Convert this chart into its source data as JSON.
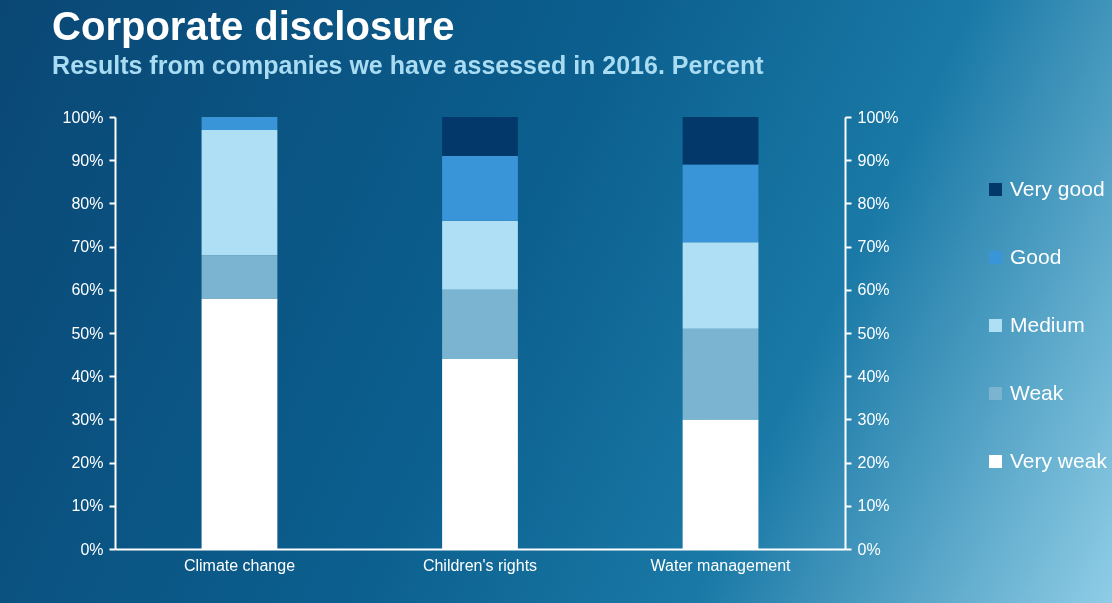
{
  "chart_data": {
    "type": "bar",
    "title": "Corporate disclosure",
    "subtitle": "Results from companies we have assessed in 2016. Percent",
    "categories": [
      "Climate change",
      "Children's rights",
      "Water management"
    ],
    "stacked": true,
    "series": [
      {
        "name": "Very weak",
        "color": "#ffffff",
        "values": [
          58,
          44,
          30
        ]
      },
      {
        "name": "Weak",
        "color": "#7ab4d0",
        "values": [
          10,
          16,
          21
        ]
      },
      {
        "name": "Medium",
        "color": "#aedff5",
        "values": [
          29,
          16,
          20
        ]
      },
      {
        "name": "Good",
        "color": "#3a94d8",
        "values": [
          3,
          15,
          18
        ]
      },
      {
        "name": "Very good",
        "color": "#03386a",
        "values": [
          0,
          9,
          11
        ]
      }
    ],
    "ylim": [
      0,
      100
    ],
    "yticks": [
      {
        "value": 0,
        "label": "0%"
      },
      {
        "value": 10,
        "label": "10%"
      },
      {
        "value": 20,
        "label": "20%"
      },
      {
        "value": 30,
        "label": "30%"
      },
      {
        "value": 40,
        "label": "40%"
      },
      {
        "value": 50,
        "label": "50%"
      },
      {
        "value": 60,
        "label": "60%"
      },
      {
        "value": 70,
        "label": "70%"
      },
      {
        "value": 80,
        "label": "80%"
      },
      {
        "value": 90,
        "label": "90%"
      },
      {
        "value": 100,
        "label": "100%"
      }
    ],
    "y2lim": [
      0,
      100
    ],
    "y2ticks": [
      {
        "value": 0,
        "label": "0%"
      },
      {
        "value": 10,
        "label": "10%"
      },
      {
        "value": 20,
        "label": "20%"
      },
      {
        "value": 30,
        "label": "30%"
      },
      {
        "value": 40,
        "label": "40%"
      },
      {
        "value": 50,
        "label": "50%"
      },
      {
        "value": 60,
        "label": "60%"
      },
      {
        "value": 70,
        "label": "70%"
      },
      {
        "value": 80,
        "label": "80%"
      },
      {
        "value": 90,
        "label": "90%"
      },
      {
        "value": 100,
        "label": "100%"
      }
    ],
    "grid": false,
    "legend": "right"
  }
}
